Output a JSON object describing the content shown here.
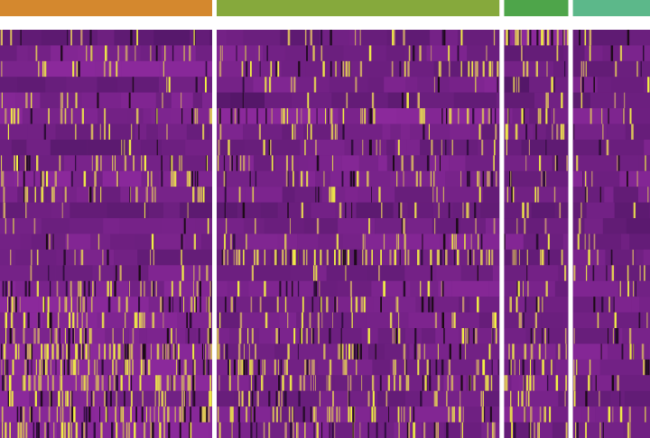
{
  "chart_data": {
    "type": "heatmap",
    "title": "",
    "xlabel": "",
    "ylabel": "",
    "legend": "none",
    "color_scale": {
      "low": "#3b0f52",
      "mid": "#8e2a9e",
      "high": "#f5f542",
      "zero": "#1a0a12"
    },
    "value_range": [
      0,
      1
    ],
    "gene_row_count": 26,
    "clusters": [
      {
        "name": "",
        "color": "#d4882e",
        "cell_share": 0.33
      },
      {
        "name": "",
        "color": "#86a93c",
        "cell_share": 0.44
      },
      {
        "name": "",
        "color": "#4ea54a",
        "cell_share": 0.1
      },
      {
        "name": "",
        "color": "#5cb88a",
        "cell_share": 0.12
      }
    ],
    "row_baseline": [
      [
        0.3,
        0.35,
        0.75,
        0.35
      ],
      [
        0.45,
        0.45,
        0.3,
        0.4
      ],
      [
        0.55,
        0.4,
        0.35,
        0.35
      ],
      [
        0.35,
        0.45,
        0.3,
        0.4
      ],
      [
        0.45,
        0.3,
        0.35,
        0.35
      ],
      [
        0.5,
        0.55,
        0.4,
        0.45
      ],
      [
        0.4,
        0.4,
        0.4,
        0.35
      ],
      [
        0.35,
        0.4,
        0.3,
        0.4
      ],
      [
        0.45,
        0.45,
        0.35,
        0.4
      ],
      [
        0.5,
        0.45,
        0.4,
        0.45
      ],
      [
        0.4,
        0.4,
        0.35,
        0.4
      ],
      [
        0.35,
        0.35,
        0.3,
        0.35
      ],
      [
        0.4,
        0.4,
        0.35,
        0.35
      ],
      [
        0.45,
        0.5,
        0.45,
        0.4
      ],
      [
        0.4,
        0.4,
        0.35,
        0.4
      ],
      [
        0.45,
        0.4,
        0.4,
        0.4
      ],
      [
        0.5,
        0.45,
        0.4,
        0.45
      ],
      [
        0.55,
        0.4,
        0.4,
        0.4
      ],
      [
        0.55,
        0.4,
        0.4,
        0.4
      ],
      [
        0.5,
        0.45,
        0.45,
        0.4
      ],
      [
        0.6,
        0.4,
        0.45,
        0.45
      ],
      [
        0.55,
        0.4,
        0.4,
        0.45
      ],
      [
        0.6,
        0.45,
        0.45,
        0.4
      ],
      [
        0.5,
        0.4,
        0.4,
        0.4
      ],
      [
        0.55,
        0.45,
        0.45,
        0.45
      ],
      [
        0.55,
        0.45,
        0.4,
        0.45
      ]
    ],
    "row_highlight_density": [
      [
        0.1,
        0.1,
        0.8,
        0.1
      ],
      [
        0.15,
        0.12,
        0.05,
        0.1
      ],
      [
        0.12,
        0.25,
        0.2,
        0.15
      ],
      [
        0.05,
        0.08,
        0.15,
        0.1
      ],
      [
        0.1,
        0.05,
        0.1,
        0.08
      ],
      [
        0.2,
        0.3,
        0.25,
        0.15
      ],
      [
        0.1,
        0.1,
        0.3,
        0.1
      ],
      [
        0.05,
        0.15,
        0.1,
        0.05
      ],
      [
        0.25,
        0.15,
        0.15,
        0.1
      ],
      [
        0.3,
        0.25,
        0.2,
        0.15
      ],
      [
        0.25,
        0.1,
        0.2,
        0.1
      ],
      [
        0.05,
        0.12,
        0.1,
        0.05
      ],
      [
        0.05,
        0.08,
        0.1,
        0.05
      ],
      [
        0.08,
        0.15,
        0.1,
        0.1
      ],
      [
        0.1,
        0.55,
        0.35,
        0.1
      ],
      [
        0.1,
        0.05,
        0.05,
        0.2
      ],
      [
        0.35,
        0.12,
        0.15,
        0.1
      ],
      [
        0.4,
        0.2,
        0.2,
        0.1
      ],
      [
        0.3,
        0.15,
        0.15,
        0.1
      ],
      [
        0.3,
        0.25,
        0.2,
        0.15
      ],
      [
        0.6,
        0.25,
        0.3,
        0.15
      ],
      [
        0.5,
        0.35,
        0.3,
        0.2
      ],
      [
        0.55,
        0.35,
        0.3,
        0.15
      ],
      [
        0.35,
        0.2,
        0.2,
        0.1
      ],
      [
        0.5,
        0.35,
        0.3,
        0.15
      ],
      [
        0.45,
        0.3,
        0.25,
        0.2
      ]
    ]
  }
}
